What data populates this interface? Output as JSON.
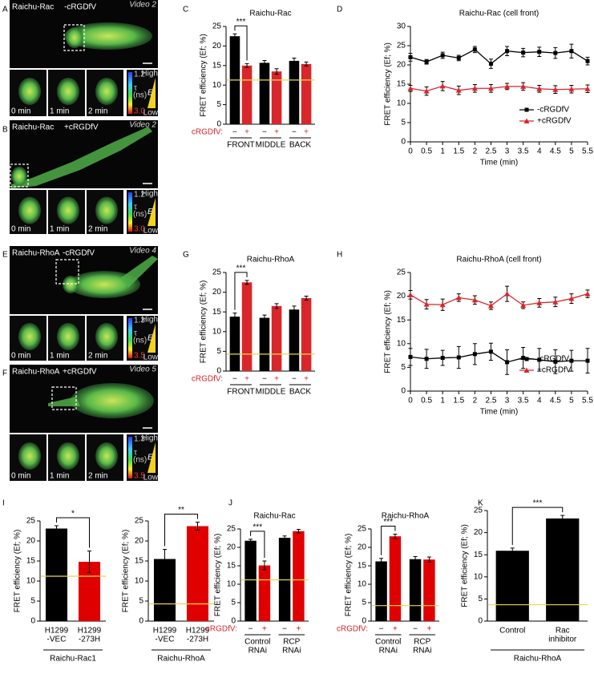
{
  "image_panels": [
    {
      "letter": "A",
      "sensor": "Raichu-Rac",
      "condition": "-cRGDfV",
      "video": "Video 2",
      "scale_top": "1.2",
      "scale_bottom": "3.0"
    },
    {
      "letter": "B",
      "sensor": "Raichu-Rac",
      "condition": "+cRGDfV",
      "video": "Video 2",
      "scale_top": "1.2",
      "scale_bottom": "3.0"
    },
    {
      "letter": "E",
      "sensor": "Raichu-RhoA",
      "condition": "-cRGDfV",
      "video": "Video 4",
      "scale_top": "1.3",
      "scale_bottom": "3.5"
    },
    {
      "letter": "F",
      "sensor": "Raichu-RhoA",
      "condition": "+cRGDfV",
      "video": "Video 5",
      "scale_top": "1.3",
      "scale_bottom": "3.5"
    }
  ],
  "thumbnail_times": [
    "0 min",
    "1 min",
    "2 min"
  ],
  "colorbar_labels": {
    "tau": "τ",
    "unit": "(ns)",
    "high": "High",
    "low": "Low",
    "e": "E"
  },
  "chart_data": [
    {
      "type": "bar",
      "panel": "C",
      "title": "Raichu-Rac",
      "ylabel": "FRET efficiency (Ef; %)",
      "treatment_label": "cRGDfV:",
      "categories": [
        "FRONT",
        "MIDDLE",
        "BACK"
      ],
      "series": [
        {
          "name": "−",
          "color": "#000000",
          "values": [
            22.5,
            15.7,
            16.2
          ],
          "errors": [
            0.6,
            0.6,
            0.7
          ]
        },
        {
          "name": "+",
          "color": "#d9262b",
          "values": [
            15.0,
            13.5,
            15.4
          ],
          "errors": [
            0.5,
            0.7,
            0.5
          ]
        }
      ],
      "threshold": 11.3,
      "threshold_color": "#e8d84a",
      "significance": "***",
      "ylim": [
        0,
        25
      ],
      "yticks": [
        0,
        5,
        10,
        15,
        20,
        25
      ]
    },
    {
      "type": "line",
      "panel": "D",
      "title": "Raichu-Rac (cell front)",
      "xlabel": "Time (min)",
      "ylabel": "FRET efficiency (Ef; %)",
      "x": [
        0,
        0.5,
        1,
        1.5,
        2,
        2.5,
        3,
        3.5,
        4,
        4.5,
        5,
        5.5
      ],
      "series": [
        {
          "name": "-cRGDfV",
          "color": "#000000",
          "marker": "square",
          "values": [
            22,
            20.8,
            22.5,
            21.8,
            24,
            20.3,
            23.6,
            23.2,
            23.4,
            23.1,
            23.6,
            21
          ],
          "errors": [
            1,
            0.6,
            0.8,
            0.7,
            0.8,
            1.2,
            1.2,
            1.1,
            1.2,
            1.4,
            1.8,
            1.0
          ]
        },
        {
          "name": "+cRGDfV",
          "color": "#d9262b",
          "marker": "triangle",
          "values": [
            13.9,
            13.2,
            14.5,
            13.4,
            13.9,
            13.9,
            14.4,
            14.4,
            13.8,
            13.6,
            13.7,
            13.8
          ],
          "errors": [
            0.8,
            1.1,
            1.2,
            1.1,
            1.0,
            1.0,
            0.8,
            1.0,
            0.9,
            1.0,
            1.0,
            1.0
          ]
        }
      ],
      "xlim": [
        0,
        5.5
      ],
      "xticks": [
        0,
        0.5,
        1,
        1.5,
        2,
        2.5,
        3,
        3.5,
        4,
        4.5,
        5,
        5.5
      ],
      "ylim": [
        0,
        30
      ],
      "yticks": [
        0,
        5,
        10,
        15,
        20,
        25,
        30
      ],
      "legend": "lower right"
    },
    {
      "type": "bar",
      "panel": "G",
      "title": "Raichu-RhoA",
      "ylabel": "FRET efficiency (Ef; %)",
      "treatment_label": "cRGDfV:",
      "categories": [
        "FRONT",
        "MIDDLE",
        "BACK"
      ],
      "series": [
        {
          "name": "−",
          "color": "#000000",
          "values": [
            13.8,
            13.5,
            15.6
          ],
          "errors": [
            0.9,
            0.7,
            0.9
          ]
        },
        {
          "name": "+",
          "color": "#d9262b",
          "values": [
            22.5,
            16.5,
            18.5
          ],
          "errors": [
            0.5,
            0.6,
            0.5
          ]
        }
      ],
      "threshold": 4.3,
      "threshold_color": "#e8d84a",
      "significance": "***",
      "ylim": [
        0,
        25
      ],
      "yticks": [
        0,
        5,
        10,
        15,
        20,
        25
      ]
    },
    {
      "type": "line",
      "panel": "H",
      "title": "Raichu-RhoA (cell front)",
      "xlabel": "Time (min)",
      "ylabel": "FRET efficiency (Ef; %)",
      "x": [
        0,
        0.5,
        1,
        1.5,
        2,
        2.5,
        3,
        3.5,
        4,
        4.5,
        5,
        5.5
      ],
      "series": [
        {
          "name": "-cRGDfV",
          "color": "#000000",
          "marker": "square",
          "values": [
            7.2,
            6.8,
            7,
            7.1,
            7.8,
            8.3,
            6.1,
            7,
            6.6,
            6.2,
            6.4,
            6.4
          ],
          "errors": [
            1.8,
            2,
            1.6,
            2.3,
            2.2,
            1.8,
            2.6,
            2.2,
            2.4,
            2.5,
            2.2,
            2.6
          ]
        },
        {
          "name": "+cRGDfV",
          "color": "#d9262b",
          "marker": "triangle",
          "values": [
            20.3,
            18.3,
            18.2,
            19.7,
            19.2,
            18,
            20.5,
            18.1,
            18.6,
            18.8,
            19.5,
            20.5
          ],
          "errors": [
            0.9,
            1,
            1.2,
            0.8,
            0.9,
            0.8,
            1.6,
            0.7,
            0.9,
            1,
            1,
            0.8
          ]
        }
      ],
      "xlim": [
        0,
        5.5
      ],
      "xticks": [
        0,
        0.5,
        1,
        1.5,
        2,
        2.5,
        3,
        3.5,
        4,
        4.5,
        5,
        5.5
      ],
      "ylim": [
        0,
        25
      ],
      "yticks": [
        0,
        5,
        10,
        15,
        20,
        25
      ],
      "legend": "lower right"
    },
    {
      "type": "bar",
      "panel": "I",
      "ylabel": "FRET efficiency (Ef; %)",
      "categories": [
        [
          "H1299",
          "-VEC"
        ],
        [
          "H1299",
          "-273H"
        ]
      ],
      "values": [
        23.1,
        14.8
      ],
      "errors": [
        0.7,
        2.7
      ],
      "colors": [
        "#000000",
        "#e00000"
      ],
      "threshold": 11.2,
      "threshold_color": "#e8d84a",
      "significance": "*",
      "group_label": "Raichu-Rac1",
      "ylim": [
        0,
        25
      ],
      "yticks": [
        0,
        5,
        10,
        15,
        20,
        25
      ]
    },
    {
      "type": "bar",
      "ylabel": "FRET efficiency (Ef; %)",
      "categories": [
        [
          "H1299",
          "-VEC"
        ],
        [
          "H1299",
          "-273H"
        ]
      ],
      "values": [
        15.5,
        23.7
      ],
      "errors": [
        2.4,
        1.0
      ],
      "colors": [
        "#000000",
        "#e00000"
      ],
      "threshold": 4.3,
      "threshold_color": "#e8d84a",
      "significance": "**",
      "group_label": "Raichu-RhoA",
      "ylim": [
        0,
        25
      ],
      "yticks": [
        0,
        5,
        10,
        15,
        20,
        25
      ]
    },
    {
      "type": "bar",
      "panel": "J",
      "title": "Raichu-Rac",
      "ylabel": "FRET efficiency (Ef; %)",
      "treatment_label": "cRGDfV:",
      "categories": [
        [
          "Control",
          "RNAi"
        ],
        [
          "RCP",
          "RNAi"
        ]
      ],
      "series": [
        {
          "name": "−",
          "color": "#000000",
          "values": [
            21.8,
            22.6
          ],
          "errors": [
            0.4,
            0.5
          ]
        },
        {
          "name": "+",
          "color": "#e00000",
          "values": [
            15.1,
            24.4
          ],
          "errors": [
            1.2,
            0.5
          ]
        }
      ],
      "threshold": 11.2,
      "threshold_color": "#e8d84a",
      "significance": "***",
      "ylim": [
        0,
        25
      ],
      "yticks": [
        0,
        5,
        10,
        15,
        20,
        25
      ]
    },
    {
      "type": "bar",
      "title": "Raichu-RhoA",
      "ylabel": "FRET efficiency (Ef; %)",
      "treatment_label": "cRGDfV:",
      "categories": [
        [
          "Control",
          "RNAi"
        ],
        [
          "RCP",
          "RNAi"
        ]
      ],
      "series": [
        {
          "name": "−",
          "color": "#000000",
          "values": [
            16.2,
            16.8
          ],
          "errors": [
            0.8,
            0.7
          ]
        },
        {
          "name": "+",
          "color": "#e00000",
          "values": [
            23,
            16.7
          ],
          "errors": [
            0.6,
            0.7
          ]
        }
      ],
      "threshold": 4.2,
      "threshold_color": "#e8d84a",
      "significance": "***",
      "ylim": [
        0,
        25
      ],
      "yticks": [
        0,
        5,
        10,
        15,
        20,
        25
      ]
    },
    {
      "type": "bar",
      "panel": "K",
      "ylabel": "FRET efficiency (Ef; %)",
      "categories": [
        [
          "Control"
        ],
        [
          "Rac",
          "inhibitor"
        ]
      ],
      "values": [
        15.9,
        23.2
      ],
      "errors": [
        0.6,
        0.7
      ],
      "colors": [
        "#000000",
        "#000000"
      ],
      "threshold": 3.7,
      "threshold_color": "#e8d84a",
      "significance": "***",
      "group_label": "Raichu-RhoA",
      "ylim": [
        0,
        25
      ],
      "yticks": [
        0,
        5,
        10,
        15,
        20,
        25
      ]
    }
  ]
}
